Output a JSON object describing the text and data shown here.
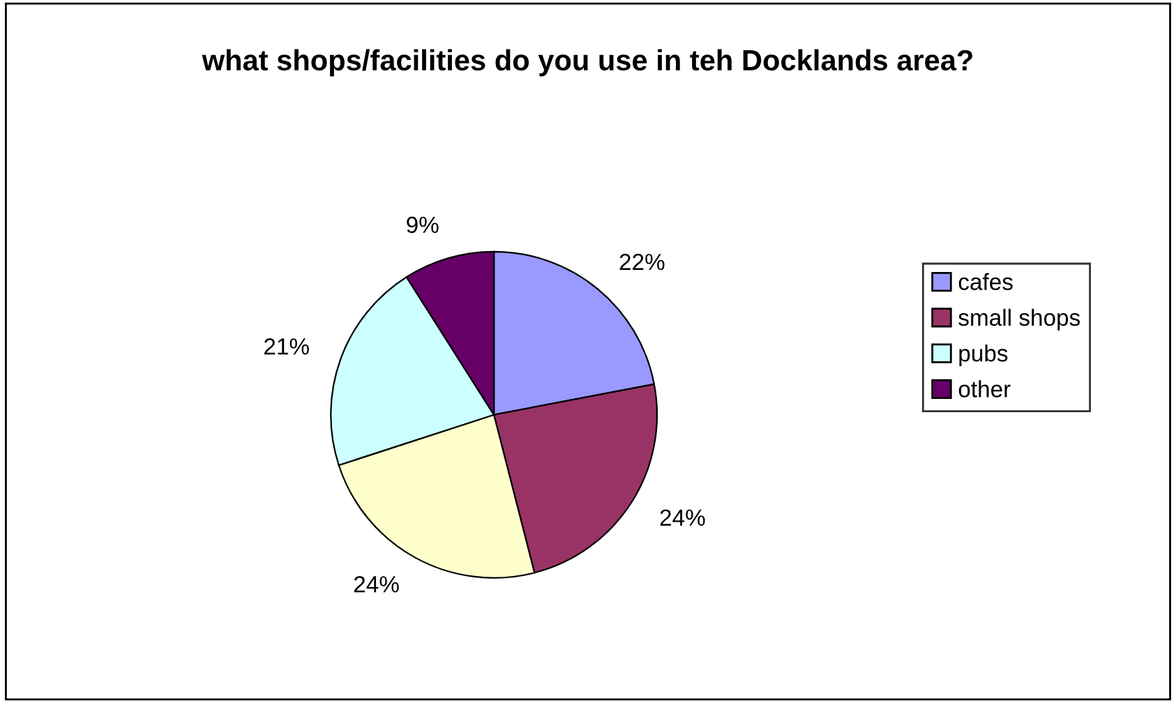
{
  "chart_data": {
    "type": "pie",
    "title": "what shops/facilities do you use in teh Docklands area?",
    "categories": [
      "cafes",
      "small shops",
      null,
      "pubs",
      "other"
    ],
    "values": [
      22,
      24,
      24,
      21,
      9
    ],
    "value_labels": [
      "22%",
      "24%",
      "24%",
      "21%",
      "9%"
    ],
    "colors": [
      "#9999ff",
      "#993366",
      "#ffffcc",
      "#ccffff",
      "#660066"
    ],
    "legend": "right"
  }
}
